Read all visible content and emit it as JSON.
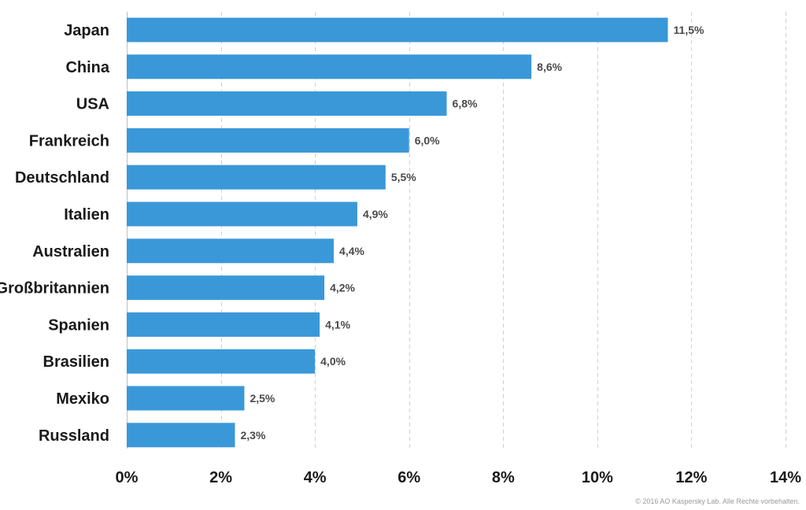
{
  "chart_data": {
    "type": "bar",
    "orientation": "horizontal",
    "categories": [
      "Japan",
      "China",
      "USA",
      "Frankreich",
      "Deutschland",
      "Italien",
      "Australien",
      "Großbritannien",
      "Spanien",
      "Brasilien",
      "Mexiko",
      "Russland"
    ],
    "values": [
      11.5,
      8.6,
      6.8,
      6.0,
      5.5,
      4.9,
      4.4,
      4.2,
      4.1,
      4.0,
      2.5,
      2.3
    ],
    "value_labels": [
      "11,5%",
      "8,6%",
      "6,8%",
      "6,0%",
      "5,5%",
      "4,9%",
      "4,4%",
      "4,2%",
      "4,1%",
      "4,0%",
      "2,5%",
      "2,3%"
    ],
    "xlim": [
      0,
      14
    ],
    "x_ticks": [
      0,
      2,
      4,
      6,
      8,
      10,
      12,
      14
    ],
    "x_tick_labels": [
      "0%",
      "2%",
      "4%",
      "6%",
      "8%",
      "10%",
      "12%",
      "14%"
    ],
    "grid": true,
    "bar_color": "#3a98d8"
  },
  "footer": {
    "copyright": "© 2016 AO Kaspersky Lab. Alle Rechte vorbehalten."
  }
}
